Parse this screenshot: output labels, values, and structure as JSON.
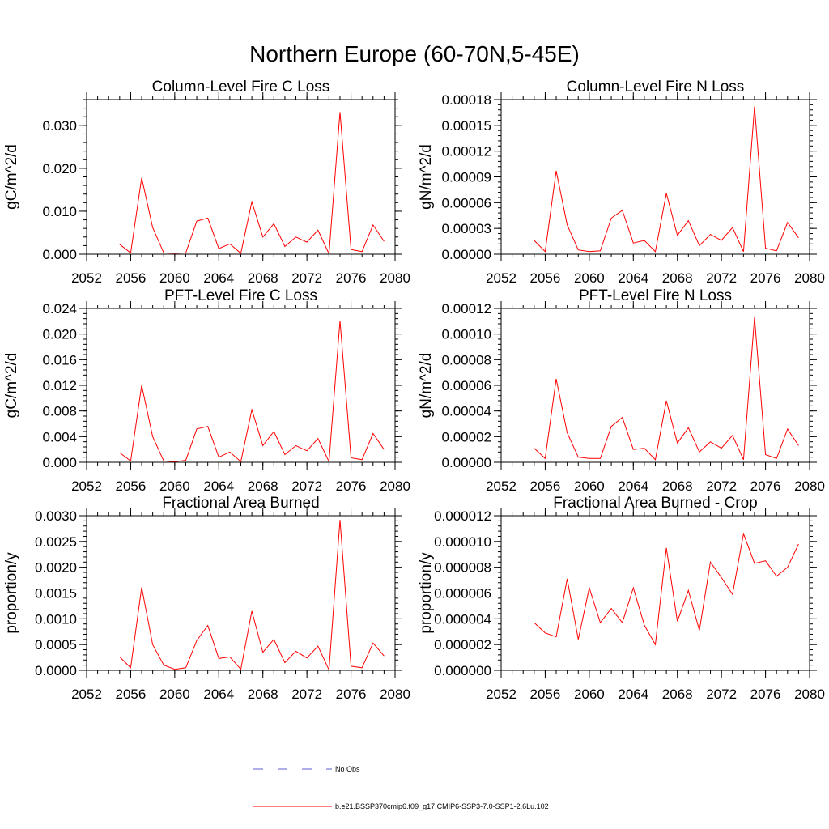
{
  "title": "Northern Europe (60-70N,5-45E)",
  "colors": {
    "model": "#ff0000",
    "obs": "#5b5bd6",
    "axis": "#000000"
  },
  "legend": {
    "items": [
      {
        "label": "No Obs",
        "style": "dashed",
        "color": "#5b5bd6"
      },
      {
        "label": "b.e21.BSSP370cmip6.f09_g17.CMIP6-SSP3-7.0-SSP1-2.6Lu.102",
        "style": "solid",
        "color": "#ff0000"
      }
    ]
  },
  "chart_data": [
    {
      "type": "line",
      "title": "Column-Level Fire C Loss",
      "ylabel": "gC/m^2/d",
      "xlim": [
        2052,
        2080
      ],
      "ylim": [
        0,
        0.036
      ],
      "xticks": [
        2052,
        2056,
        2060,
        2064,
        2068,
        2072,
        2076,
        2080
      ],
      "xtick_labels": [
        "2052",
        "2056",
        "2060",
        "2064",
        "2068",
        "2072",
        "2076",
        "2080"
      ],
      "yticks": [
        0,
        0.01,
        0.02,
        0.03
      ],
      "ytick_labels": [
        "0.000",
        "0.010",
        "0.020",
        "0.030"
      ],
      "x": [
        2055,
        2056,
        2057,
        2058,
        2059,
        2060,
        2061,
        2062,
        2063,
        2064,
        2065,
        2066,
        2067,
        2068,
        2069,
        2070,
        2071,
        2072,
        2073,
        2074,
        2075,
        2076,
        2077,
        2078,
        2079
      ],
      "series": [
        {
          "name": "b.e21.BSSP370cmip6.f09_g17.CMIP6-SSP3-7.0-SSP1-2.6Lu.102",
          "values": [
            0.0023,
            0.0003,
            0.0178,
            0.0062,
            0.0003,
            0.0002,
            0.0003,
            0.0077,
            0.0084,
            0.0013,
            0.0024,
            0.0002,
            0.0122,
            0.004,
            0.0071,
            0.0018,
            0.004,
            0.0028,
            0.0056,
            0.0001,
            0.0331,
            0.0011,
            0.0006,
            0.0068,
            0.003
          ]
        }
      ]
    },
    {
      "type": "line",
      "title": "Column-Level Fire N Loss",
      "ylabel": "gN/m^2/d",
      "xlim": [
        2052,
        2080
      ],
      "ylim": [
        0,
        0.00018
      ],
      "xticks": [
        2052,
        2056,
        2060,
        2064,
        2068,
        2072,
        2076,
        2080
      ],
      "xtick_labels": [
        "2052",
        "2056",
        "2060",
        "2064",
        "2068",
        "2072",
        "2076",
        "2080"
      ],
      "yticks": [
        0,
        3e-05,
        6e-05,
        9e-05,
        0.00012,
        0.00015,
        0.00018
      ],
      "ytick_labels": [
        "0.00000",
        "0.00003",
        "0.00006",
        "0.00009",
        "0.00012",
        "0.00015",
        "0.00018"
      ],
      "x": [
        2055,
        2056,
        2057,
        2058,
        2059,
        2060,
        2061,
        2062,
        2063,
        2064,
        2065,
        2066,
        2067,
        2068,
        2069,
        2070,
        2071,
        2072,
        2073,
        2074,
        2075,
        2076,
        2077,
        2078,
        2079
      ],
      "series": [
        {
          "name": "b.e21.BSSP370cmip6.f09_g17.CMIP6-SSP3-7.0-SSP1-2.6Lu.102",
          "values": [
            1.6e-05,
            3e-06,
            9.7e-05,
            3.4e-05,
            5e-06,
            3e-06,
            4e-06,
            4.2e-05,
            5.1e-05,
            1.3e-05,
            1.6e-05,
            3e-06,
            7.1e-05,
            2.2e-05,
            3.9e-05,
            1e-05,
            2.3e-05,
            1.6e-05,
            3.1e-05,
            3e-06,
            0.000172,
            7e-06,
            4e-06,
            3.7e-05,
            1.9e-05
          ]
        }
      ]
    },
    {
      "type": "line",
      "title": "PFT-Level Fire C Loss",
      "ylabel": "gC/m^2/d",
      "xlim": [
        2052,
        2080
      ],
      "ylim": [
        0,
        0.024
      ],
      "xticks": [
        2052,
        2056,
        2060,
        2064,
        2068,
        2072,
        2076,
        2080
      ],
      "xtick_labels": [
        "2052",
        "2056",
        "2060",
        "2064",
        "2068",
        "2072",
        "2076",
        "2080"
      ],
      "yticks": [
        0,
        0.004,
        0.008,
        0.012,
        0.016,
        0.02,
        0.024
      ],
      "ytick_labels": [
        "0.000",
        "0.004",
        "0.008",
        "0.012",
        "0.016",
        "0.020",
        "0.024"
      ],
      "x": [
        2055,
        2056,
        2057,
        2058,
        2059,
        2060,
        2061,
        2062,
        2063,
        2064,
        2065,
        2066,
        2067,
        2068,
        2069,
        2070,
        2071,
        2072,
        2073,
        2074,
        2075,
        2076,
        2077,
        2078,
        2079
      ],
      "series": [
        {
          "name": "b.e21.BSSP370cmip6.f09_g17.CMIP6-SSP3-7.0-SSP1-2.6Lu.102",
          "values": [
            0.0015,
            0.0002,
            0.012,
            0.004,
            0.0002,
            0.0001,
            0.0003,
            0.0052,
            0.0056,
            0.0008,
            0.0016,
            0.0001,
            0.0082,
            0.0026,
            0.0048,
            0.0012,
            0.0026,
            0.0018,
            0.0037,
            0.0001,
            0.0221,
            0.0007,
            0.0004,
            0.0045,
            0.002
          ]
        }
      ]
    },
    {
      "type": "line",
      "title": "PFT-Level Fire N Loss",
      "ylabel": "gN/m^2/d",
      "xlim": [
        2052,
        2080
      ],
      "ylim": [
        0,
        0.00012
      ],
      "xticks": [
        2052,
        2056,
        2060,
        2064,
        2068,
        2072,
        2076,
        2080
      ],
      "xtick_labels": [
        "2052",
        "2056",
        "2060",
        "2064",
        "2068",
        "2072",
        "2076",
        "2080"
      ],
      "yticks": [
        0,
        2e-05,
        4e-05,
        6e-05,
        8e-05,
        0.0001,
        0.00012
      ],
      "ytick_labels": [
        "0.00000",
        "0.00002",
        "0.00004",
        "0.00006",
        "0.00008",
        "0.00010",
        "0.00012"
      ],
      "x": [
        2055,
        2056,
        2057,
        2058,
        2059,
        2060,
        2061,
        2062,
        2063,
        2064,
        2065,
        2066,
        2067,
        2068,
        2069,
        2070,
        2071,
        2072,
        2073,
        2074,
        2075,
        2076,
        2077,
        2078,
        2079
      ],
      "series": [
        {
          "name": "b.e21.BSSP370cmip6.f09_g17.CMIP6-SSP3-7.0-SSP1-2.6Lu.102",
          "values": [
            1.1e-05,
            3e-06,
            6.5e-05,
            2.3e-05,
            4e-06,
            3e-06,
            3e-06,
            2.8e-05,
            3.5e-05,
            1e-05,
            1.1e-05,
            2e-06,
            4.8e-05,
            1.5e-05,
            2.7e-05,
            8e-06,
            1.6e-05,
            1.1e-05,
            2.1e-05,
            2e-06,
            0.000113,
            6e-06,
            3e-06,
            2.6e-05,
            1.3e-05
          ]
        }
      ]
    },
    {
      "type": "line",
      "title": "Fractional Area Burned",
      "ylabel": "proportion/y",
      "xlim": [
        2052,
        2080
      ],
      "ylim": [
        0,
        0.003
      ],
      "xticks": [
        2052,
        2056,
        2060,
        2064,
        2068,
        2072,
        2076,
        2080
      ],
      "xtick_labels": [
        "2052",
        "2056",
        "2060",
        "2064",
        "2068",
        "2072",
        "2076",
        "2080"
      ],
      "yticks": [
        0,
        0.0005,
        0.001,
        0.0015,
        0.002,
        0.0025,
        0.003
      ],
      "ytick_labels": [
        "0.0000",
        "0.0005",
        "0.0010",
        "0.0015",
        "0.0020",
        "0.0025",
        "0.0030"
      ],
      "x": [
        2055,
        2056,
        2057,
        2058,
        2059,
        2060,
        2061,
        2062,
        2063,
        2064,
        2065,
        2066,
        2067,
        2068,
        2069,
        2070,
        2071,
        2072,
        2073,
        2074,
        2075,
        2076,
        2077,
        2078,
        2079
      ],
      "series": [
        {
          "name": "b.e21.BSSP370cmip6.f09_g17.CMIP6-SSP3-7.0-SSP1-2.6Lu.102",
          "values": [
            0.00026,
            5e-05,
            0.00161,
            0.0005,
            0.0001,
            2e-05,
            5e-05,
            0.00058,
            0.00087,
            0.00023,
            0.00026,
            2e-05,
            0.00115,
            0.00035,
            0.0006,
            0.00015,
            0.00037,
            0.00024,
            0.00047,
            1e-05,
            0.00292,
            8e-05,
            5e-05,
            0.00053,
            0.00028
          ]
        }
      ]
    },
    {
      "type": "line",
      "title": "Fractional Area Burned - Crop",
      "ylabel": "proportion/y",
      "xlim": [
        2052,
        2080
      ],
      "ylim": [
        0,
        1.2e-05
      ],
      "xticks": [
        2052,
        2056,
        2060,
        2064,
        2068,
        2072,
        2076,
        2080
      ],
      "xtick_labels": [
        "2052",
        "2056",
        "2060",
        "2064",
        "2068",
        "2072",
        "2076",
        "2080"
      ],
      "yticks": [
        0,
        2e-06,
        4e-06,
        6e-06,
        8e-06,
        1e-05,
        1.2e-05
      ],
      "ytick_labels": [
        "0.000000",
        "0.000002",
        "0.000004",
        "0.000006",
        "0.000008",
        "0.000010",
        "0.000012"
      ],
      "x": [
        2055,
        2056,
        2057,
        2058,
        2059,
        2060,
        2061,
        2062,
        2063,
        2064,
        2065,
        2066,
        2067,
        2068,
        2069,
        2070,
        2071,
        2072,
        2073,
        2074,
        2075,
        2076,
        2077,
        2078,
        2079
      ],
      "series": [
        {
          "name": "b.e21.BSSP370cmip6.f09_g17.CMIP6-SSP3-7.0-SSP1-2.6Lu.102",
          "values": [
            3.7e-06,
            2.9e-06,
            2.6e-06,
            7.1e-06,
            2.4e-06,
            6.4e-06,
            3.7e-06,
            4.8e-06,
            3.7e-06,
            6.4e-06,
            3.5e-06,
            2e-06,
            9.5e-06,
            3.8e-06,
            6.2e-06,
            3.1e-06,
            8.4e-06,
            7.2e-06,
            5.9e-06,
            1.06e-05,
            8.3e-06,
            8.5e-06,
            7.3e-06,
            8e-06,
            9.8e-06
          ]
        }
      ]
    }
  ]
}
